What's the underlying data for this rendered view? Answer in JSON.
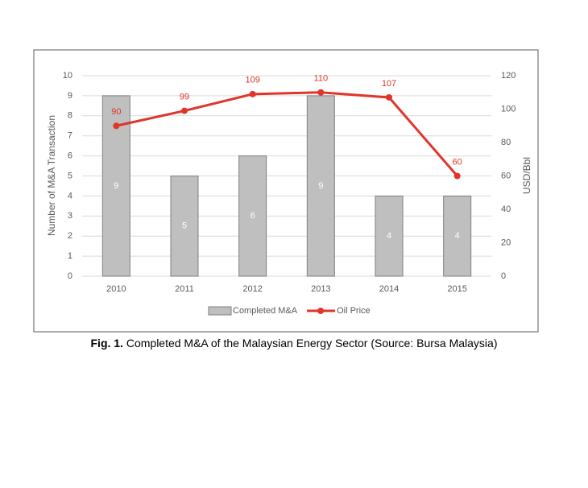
{
  "chart_data": {
    "type": "bar-line",
    "categories": [
      "2010",
      "2011",
      "2012",
      "2013",
      "2014",
      "2015"
    ],
    "series": [
      {
        "name": "Completed M&A",
        "color": "#bfbfbf",
        "type": "bar",
        "values": [
          9,
          5,
          6,
          9,
          4,
          4
        ]
      },
      {
        "name": "Oil Price",
        "color": "#e0352b",
        "type": "line",
        "axis": "y2",
        "values": [
          90,
          99,
          109,
          110,
          107,
          60
        ]
      }
    ],
    "y_label": "Number of M&A Transaction",
    "y2_label": "USD/Bbl",
    "ylim": [
      0,
      10
    ],
    "yticks": [
      0,
      1,
      2,
      3,
      4,
      5,
      6,
      7,
      8,
      9,
      10
    ],
    "y2lim": [
      0,
      120
    ],
    "y2ticks": [
      0,
      20,
      40,
      60,
      80,
      100,
      120
    ],
    "grid": true,
    "legend": "bottom",
    "caption_label": "Fig. 1.",
    "caption": "Completed M&A of the Malaysian Energy Sector (Source: Bursa Malaysia)"
  }
}
